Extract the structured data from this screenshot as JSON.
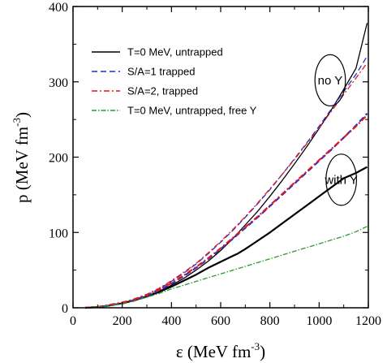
{
  "chart_data": {
    "type": "line",
    "xlabel_main": "ε (MeV fm",
    "xlabel_sup": "-3",
    "xlabel_close": ")",
    "ylabel_main": "p (MeV fm",
    "ylabel_sup": "-3",
    "ylabel_close": ")",
    "xlim": [
      0,
      1200
    ],
    "ylim": [
      0,
      400
    ],
    "xticks": [
      0,
      200,
      400,
      600,
      800,
      1000,
      1200
    ],
    "yticks": [
      0,
      100,
      200,
      300,
      400
    ],
    "grid": false,
    "legend_position": "top-left",
    "series": [
      {
        "name": "T=0 MeV, untrapped",
        "group": "no Y",
        "color": "#000000",
        "dash": "solid",
        "width": 1.3,
        "points": [
          [
            50,
            0
          ],
          [
            100,
            1
          ],
          [
            150,
            3
          ],
          [
            200,
            6
          ],
          [
            250,
            10
          ],
          [
            300,
            15
          ],
          [
            350,
            22
          ],
          [
            400,
            30
          ],
          [
            450,
            39
          ],
          [
            500,
            50
          ],
          [
            550,
            62
          ],
          [
            600,
            76
          ],
          [
            650,
            92
          ],
          [
            700,
            110
          ],
          [
            750,
            128
          ],
          [
            800,
            148
          ],
          [
            850,
            169
          ],
          [
            900,
            191
          ],
          [
            950,
            214
          ],
          [
            1000,
            238
          ],
          [
            1050,
            263
          ],
          [
            1100,
            290
          ],
          [
            1150,
            318
          ],
          [
            1195,
            378
          ]
        ]
      },
      {
        "name": "T=0 MeV, untrapped",
        "group": "with Y",
        "color": "#000000",
        "dash": "solid",
        "width": 2.2,
        "points": [
          [
            50,
            0
          ],
          [
            100,
            1
          ],
          [
            150,
            3
          ],
          [
            200,
            6
          ],
          [
            250,
            10
          ],
          [
            300,
            15
          ],
          [
            350,
            21
          ],
          [
            400,
            28
          ],
          [
            450,
            36
          ],
          [
            500,
            44
          ],
          [
            550,
            53
          ],
          [
            600,
            61
          ],
          [
            650,
            69
          ],
          [
            670,
            72
          ],
          [
            700,
            78
          ],
          [
            750,
            89
          ],
          [
            800,
            100
          ],
          [
            850,
            112
          ],
          [
            900,
            124
          ],
          [
            950,
            136
          ],
          [
            1000,
            148
          ],
          [
            1050,
            160
          ],
          [
            1100,
            172
          ],
          [
            1150,
            179
          ],
          [
            1195,
            187
          ]
        ]
      },
      {
        "name": "S/A=1 trapped",
        "group": "no Y",
        "color": "#1f2fd6",
        "dash": "7,4",
        "width": 1.3,
        "points": [
          [
            50,
            0
          ],
          [
            100,
            1
          ],
          [
            150,
            3
          ],
          [
            200,
            6
          ],
          [
            250,
            11
          ],
          [
            300,
            17
          ],
          [
            350,
            25
          ],
          [
            400,
            35
          ],
          [
            450,
            46
          ],
          [
            500,
            58
          ],
          [
            550,
            72
          ],
          [
            600,
            87
          ],
          [
            650,
            103
          ],
          [
            700,
            120
          ],
          [
            750,
            138
          ],
          [
            800,
            157
          ],
          [
            850,
            177
          ],
          [
            900,
            198
          ],
          [
            950,
            219
          ],
          [
            1000,
            241
          ],
          [
            1050,
            264
          ],
          [
            1100,
            287
          ],
          [
            1150,
            310
          ],
          [
            1195,
            334
          ]
        ]
      },
      {
        "name": "S/A=1 trapped",
        "group": "with Y",
        "color": "#1f2fd6",
        "dash": "7,4",
        "width": 2.2,
        "points": [
          [
            50,
            0
          ],
          [
            100,
            1
          ],
          [
            150,
            3
          ],
          [
            200,
            6
          ],
          [
            250,
            10
          ],
          [
            300,
            16
          ],
          [
            350,
            23
          ],
          [
            400,
            32
          ],
          [
            450,
            42
          ],
          [
            500,
            53
          ],
          [
            550,
            65
          ],
          [
            600,
            78
          ],
          [
            650,
            92
          ],
          [
            700,
            106
          ],
          [
            750,
            120
          ],
          [
            800,
            135
          ],
          [
            850,
            150
          ],
          [
            900,
            165
          ],
          [
            950,
            180
          ],
          [
            1000,
            195
          ],
          [
            1050,
            210
          ],
          [
            1100,
            226
          ],
          [
            1150,
            242
          ],
          [
            1195,
            258
          ]
        ]
      },
      {
        "name": "S/A=2, trapped",
        "group": "no Y",
        "color": "#e01818",
        "dash": "7,3,2,3",
        "width": 1.3,
        "points": [
          [
            50,
            0
          ],
          [
            100,
            1
          ],
          [
            150,
            3
          ],
          [
            200,
            7
          ],
          [
            250,
            12
          ],
          [
            300,
            18
          ],
          [
            350,
            26
          ],
          [
            400,
            36
          ],
          [
            450,
            47
          ],
          [
            500,
            59
          ],
          [
            550,
            73
          ],
          [
            600,
            88
          ],
          [
            650,
            104
          ],
          [
            700,
            121
          ],
          [
            750,
            139
          ],
          [
            800,
            158
          ],
          [
            850,
            177
          ],
          [
            900,
            197
          ],
          [
            950,
            218
          ],
          [
            1000,
            239
          ],
          [
            1050,
            261
          ],
          [
            1100,
            283
          ],
          [
            1150,
            305
          ],
          [
            1195,
            325
          ]
        ]
      },
      {
        "name": "S/A=2, trapped",
        "group": "with Y",
        "color": "#e01818",
        "dash": "7,3,2,3",
        "width": 2.2,
        "points": [
          [
            50,
            0
          ],
          [
            100,
            1
          ],
          [
            150,
            4
          ],
          [
            200,
            7
          ],
          [
            250,
            11
          ],
          [
            300,
            17
          ],
          [
            350,
            24
          ],
          [
            400,
            33
          ],
          [
            450,
            43
          ],
          [
            500,
            54
          ],
          [
            550,
            66
          ],
          [
            600,
            79
          ],
          [
            650,
            93
          ],
          [
            700,
            107
          ],
          [
            750,
            121
          ],
          [
            800,
            136
          ],
          [
            850,
            151
          ],
          [
            900,
            166
          ],
          [
            950,
            181
          ],
          [
            1000,
            196
          ],
          [
            1050,
            211
          ],
          [
            1100,
            226
          ],
          [
            1150,
            241
          ],
          [
            1195,
            256
          ]
        ]
      },
      {
        "name": "T=0 MeV, untrapped, free Y",
        "group": "",
        "color": "#2a9a2a",
        "dash": "6,2,1.5,2",
        "width": 1.3,
        "points": [
          [
            50,
            0
          ],
          [
            100,
            1
          ],
          [
            150,
            3
          ],
          [
            200,
            5
          ],
          [
            250,
            9
          ],
          [
            300,
            14
          ],
          [
            350,
            19
          ],
          [
            400,
            25
          ],
          [
            450,
            30
          ],
          [
            500,
            35
          ],
          [
            550,
            40
          ],
          [
            600,
            45
          ],
          [
            650,
            50
          ],
          [
            700,
            55
          ],
          [
            750,
            60
          ],
          [
            800,
            65
          ],
          [
            850,
            70
          ],
          [
            900,
            75
          ],
          [
            950,
            80
          ],
          [
            1000,
            85
          ],
          [
            1050,
            90
          ],
          [
            1100,
            95
          ],
          [
            1150,
            101
          ],
          [
            1195,
            108
          ]
        ]
      }
    ],
    "legend": [
      {
        "label": "T=0 MeV, untrapped",
        "color": "#000000",
        "dash": "solid",
        "width": 1.6
      },
      {
        "label": "S/A=1 trapped",
        "color": "#1f2fd6",
        "dash": "7,4",
        "width": 1.6
      },
      {
        "label": "S/A=2, trapped",
        "color": "#e01818",
        "dash": "7,3,2,3",
        "width": 1.6
      },
      {
        "label": "T=0 MeV, untrapped, free Y",
        "color": "#2a9a2a",
        "dash": "6,2,1.5,2",
        "width": 1.6
      }
    ],
    "annotations": [
      {
        "text": "no Y",
        "x": 1045,
        "y": 302,
        "rx_data": 62,
        "ry_data": 34
      },
      {
        "text": "with Y",
        "x": 1090,
        "y": 170,
        "rx_data": 62,
        "ry_data": 34
      }
    ]
  }
}
